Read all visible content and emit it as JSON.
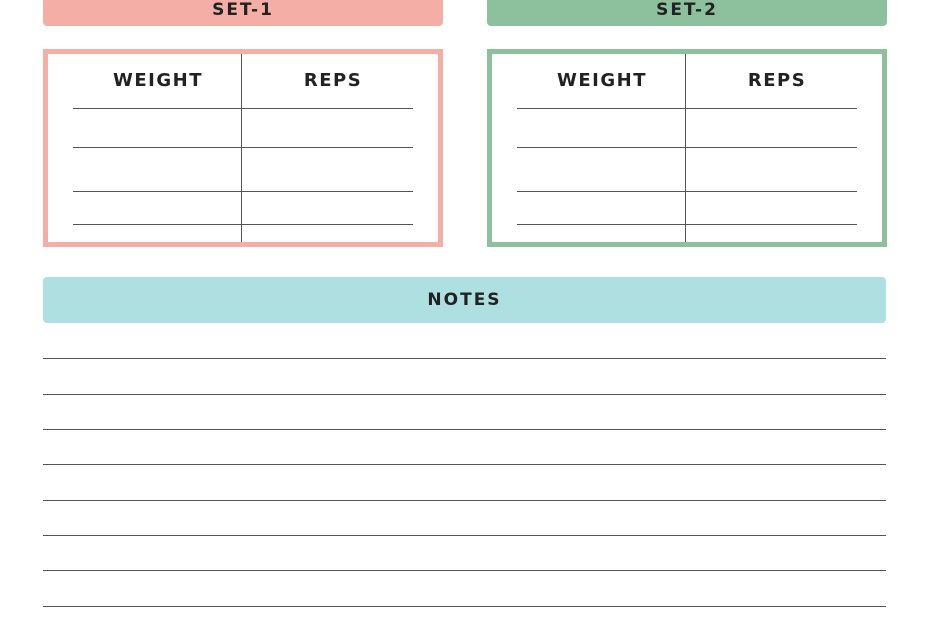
{
  "sets": [
    {
      "title": "SET-1",
      "columns": [
        "WEIGHT",
        "REPS"
      ]
    },
    {
      "title": "SET-2",
      "columns": [
        "WEIGHT",
        "REPS"
      ]
    }
  ],
  "notes": {
    "title": "NOTES"
  }
}
